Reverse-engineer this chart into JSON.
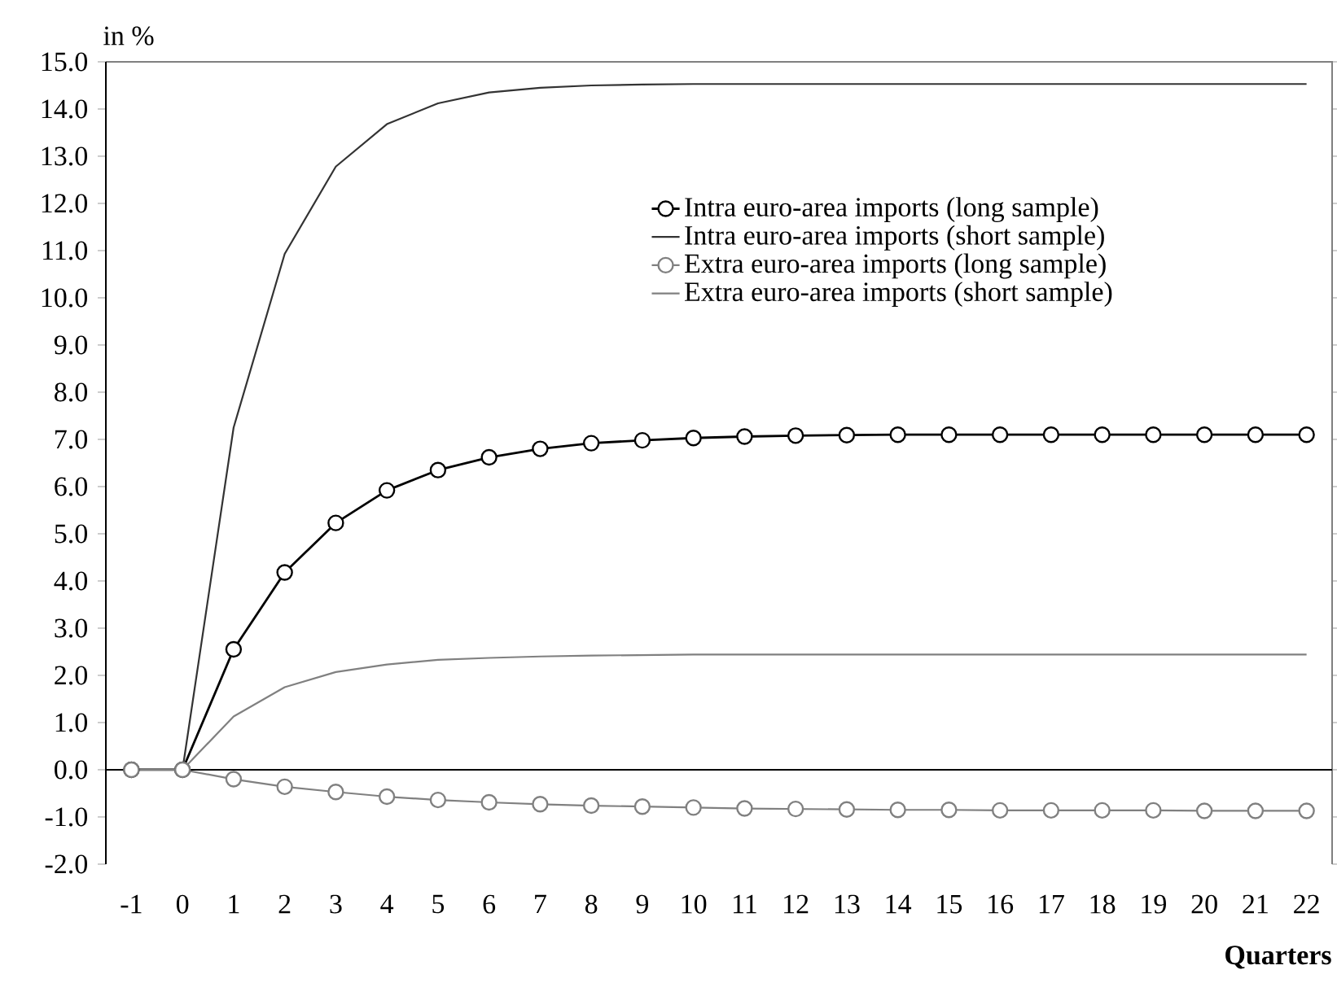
{
  "chart_data": {
    "type": "line",
    "xlabel": "Quarters",
    "ylabel": "in %",
    "categories": [
      "-1",
      "0",
      "1",
      "2",
      "3",
      "4",
      "5",
      "6",
      "7",
      "8",
      "9",
      "10",
      "11",
      "12",
      "13",
      "14",
      "15",
      "16",
      "17",
      "18",
      "19",
      "20",
      "21",
      "22"
    ],
    "series": [
      {
        "name": "Intra euro-area imports (long sample)",
        "color": "#000000",
        "marker": "circle",
        "values": [
          0,
          0,
          2.55,
          4.18,
          5.23,
          5.92,
          6.35,
          6.62,
          6.8,
          6.92,
          6.98,
          7.03,
          7.06,
          7.08,
          7.09,
          7.1,
          7.1,
          7.1,
          7.1,
          7.1,
          7.1,
          7.1,
          7.1,
          7.1
        ]
      },
      {
        "name": "Intra euro-area imports (short sample)",
        "color": "#333333",
        "marker": "none",
        "values": [
          0,
          0,
          7.25,
          10.93,
          12.78,
          13.68,
          14.12,
          14.35,
          14.45,
          14.5,
          14.52,
          14.53,
          14.53,
          14.53,
          14.53,
          14.53,
          14.53,
          14.53,
          14.53,
          14.53,
          14.53,
          14.53,
          14.53,
          14.53
        ]
      },
      {
        "name": "Extra euro-area imports (long sample)",
        "color": "#808080",
        "marker": "circle",
        "values": [
          0,
          0,
          -0.2,
          -0.36,
          -0.47,
          -0.57,
          -0.64,
          -0.69,
          -0.73,
          -0.76,
          -0.78,
          -0.8,
          -0.82,
          -0.83,
          -0.84,
          -0.85,
          -0.85,
          -0.86,
          -0.86,
          -0.86,
          -0.86,
          -0.87,
          -0.87,
          -0.87
        ]
      },
      {
        "name": "Extra euro-area imports (short sample)",
        "color": "#808080",
        "marker": "none",
        "values": [
          0,
          0,
          1.13,
          1.75,
          2.07,
          2.23,
          2.33,
          2.37,
          2.4,
          2.42,
          2.43,
          2.44,
          2.44,
          2.44,
          2.44,
          2.44,
          2.44,
          2.44,
          2.44,
          2.44,
          2.44,
          2.44,
          2.44,
          2.44
        ]
      }
    ],
    "ylim": [
      -2,
      15
    ],
    "yticks": [
      {
        "value": -2,
        "label": "-2.0"
      },
      {
        "value": -1,
        "label": "-1.0"
      },
      {
        "value": 0,
        "label": "0.0"
      },
      {
        "value": 1,
        "label": "1.0"
      },
      {
        "value": 2,
        "label": "2.0"
      },
      {
        "value": 3,
        "label": "3.0"
      },
      {
        "value": 4,
        "label": "4.0"
      },
      {
        "value": 5,
        "label": "5.0"
      },
      {
        "value": 6,
        "label": "6.0"
      },
      {
        "value": 7,
        "label": "7.0"
      },
      {
        "value": 8,
        "label": "8.0"
      },
      {
        "value": 9,
        "label": "9.0"
      },
      {
        "value": 10,
        "label": "10.0"
      },
      {
        "value": 11,
        "label": "11.0"
      },
      {
        "value": 12,
        "label": "12.0"
      },
      {
        "value": 13,
        "label": "13.0"
      },
      {
        "value": 14,
        "label": "14.0"
      },
      {
        "value": 15,
        "label": "15.0"
      }
    ],
    "legend": "right",
    "line_style": "solid"
  }
}
